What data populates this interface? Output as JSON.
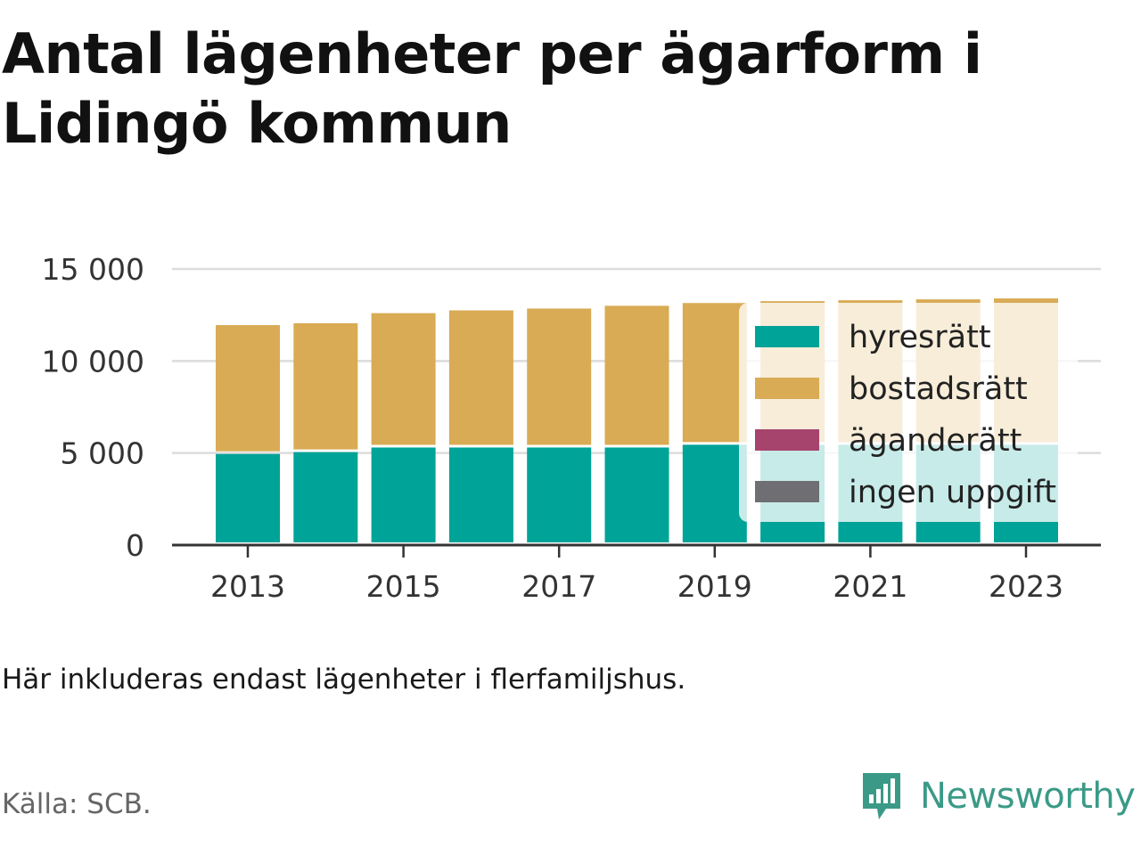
{
  "title": "Antal lägenheter per ägarform i Lidingö kommun",
  "note": "Här inkluderas endast lägenheter i flerfamiljshus.",
  "source": "Källa: SCB.",
  "brand": {
    "name": "Newsworthy",
    "icon": "newsworthy-logo-icon",
    "color": "#3a9a87"
  },
  "chart_data": {
    "type": "bar",
    "stacked": true,
    "categories": [
      "2013",
      "2014",
      "2015",
      "2016",
      "2017",
      "2018",
      "2019",
      "2020",
      "2021",
      "2022",
      "2023"
    ],
    "x_tick_labels": [
      "2013",
      "2015",
      "2017",
      "2019",
      "2021",
      "2023"
    ],
    "series": [
      {
        "name": "hyresrätt",
        "color": "#00a397",
        "values": [
          4950,
          5050,
          5300,
          5300,
          5300,
          5300,
          5450,
          5450,
          5450,
          5450,
          5450
        ]
      },
      {
        "name": "bostadsrätt",
        "color": "#d9ab55",
        "values": [
          7000,
          7000,
          7300,
          7450,
          7550,
          7700,
          7700,
          7800,
          7850,
          7900,
          7950
        ]
      },
      {
        "name": "äganderätt",
        "color": "#a6446e",
        "values": [
          0,
          0,
          0,
          0,
          0,
          0,
          0,
          0,
          0,
          0,
          0
        ]
      },
      {
        "name": "ingen uppgift",
        "color": "#6e6e73",
        "values": [
          0,
          0,
          0,
          0,
          0,
          0,
          0,
          0,
          0,
          0,
          0
        ]
      }
    ],
    "ylim": [
      0,
      15000
    ],
    "y_ticks": [
      0,
      5000,
      10000,
      15000
    ],
    "y_tick_labels": [
      "0",
      "5 000",
      "10 000",
      "15 000"
    ],
    "xlabel": "",
    "ylabel": "",
    "grid": true,
    "legend_position": "right"
  }
}
